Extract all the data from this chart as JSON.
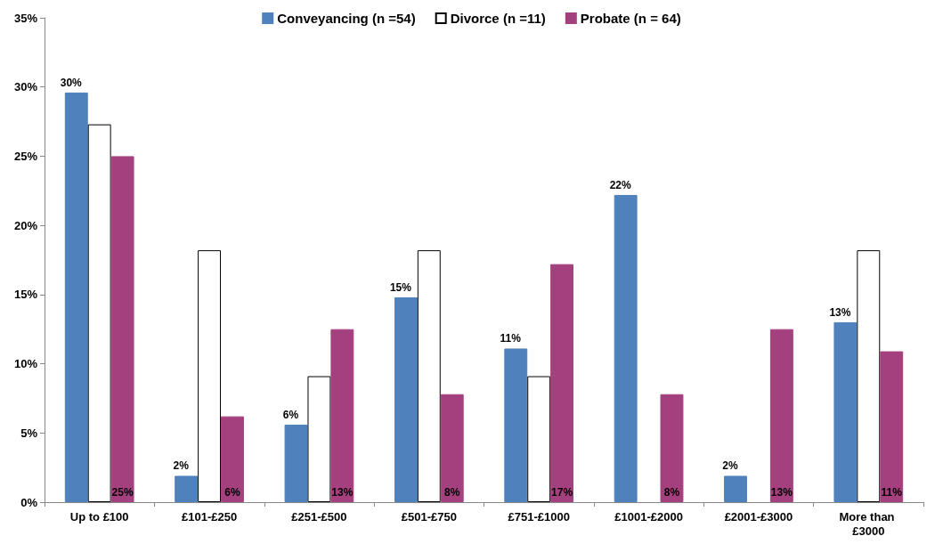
{
  "chart_data": {
    "type": "bar",
    "categories": [
      "Up to £100",
      "£101-£250",
      "£251-£500",
      "£501-£750",
      "£751-£1000",
      "£1001-£2000",
      "£2001-£3000",
      "More than £3000"
    ],
    "series": [
      {
        "name": "Conveyancing (n =54)",
        "color": "#4f81bd",
        "values": [
          29.6,
          1.9,
          5.6,
          14.8,
          11.1,
          22.2,
          1.9,
          13.0
        ],
        "value_labels": [
          "30%",
          "2%",
          "6%",
          "15%",
          "11%",
          "22%",
          "2%",
          "13%"
        ]
      },
      {
        "name": "Divorce (n =11)",
        "color": "#ffffff",
        "values": [
          27.3,
          18.2,
          9.1,
          18.2,
          9.1,
          0,
          0,
          18.2
        ]
      },
      {
        "name": "Probate (n = 64)",
        "color": "#a5407e",
        "values": [
          25.0,
          6.2,
          12.5,
          7.8,
          17.2,
          7.8,
          12.5,
          10.9
        ],
        "value_labels": [
          "25%",
          "6%",
          "13%",
          "8%",
          "17%",
          "8%",
          "13%",
          "11%"
        ]
      }
    ],
    "ylim": [
      0,
      35
    ],
    "yticks": [
      {
        "value": 0,
        "label": "0%"
      },
      {
        "value": 5,
        "label": "5%"
      },
      {
        "value": 10,
        "label": "10%"
      },
      {
        "value": 15,
        "label": "15%"
      },
      {
        "value": 20,
        "label": "20%"
      },
      {
        "value": 25,
        "label": "25%"
      },
      {
        "value": 30,
        "label": "30%"
      },
      {
        "value": 35,
        "label": "35%"
      }
    ],
    "grid": false,
    "legend": "top"
  }
}
